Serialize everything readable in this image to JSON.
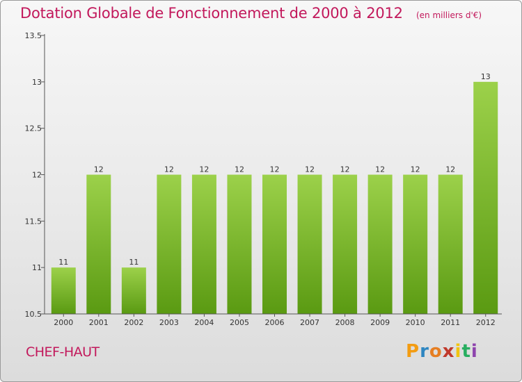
{
  "header": {
    "title": "Dotation Globale de Fonctionnement de 2000 à 2012",
    "subtitle": "(en milliers d'€)"
  },
  "footer": {
    "commune": "CHEF-HAUT",
    "logo_letters": [
      "P",
      "r",
      "o",
      "x",
      "i",
      "t",
      "i"
    ],
    "logo_colors": [
      "#f39c12",
      "#2e86c1",
      "#e67e22",
      "#c0392b",
      "#f1c40f",
      "#27ae60",
      "#8e44ad"
    ]
  },
  "chart_data": {
    "type": "bar",
    "categories": [
      "2000",
      "2001",
      "2002",
      "2003",
      "2004",
      "2005",
      "2006",
      "2007",
      "2008",
      "2009",
      "2010",
      "2011",
      "2012"
    ],
    "values": [
      11,
      12,
      11,
      12,
      12,
      12,
      12,
      12,
      12,
      12,
      12,
      12,
      13
    ],
    "data_labels": [
      "11",
      "12",
      "11",
      "12",
      "12",
      "12",
      "12",
      "12",
      "12",
      "12",
      "12",
      "12",
      "13"
    ],
    "yticks": [
      "10.5",
      "11",
      "11.5",
      "12",
      "12.5",
      "13",
      "13.5"
    ],
    "ylim": [
      10.5,
      13.5
    ],
    "grid": false,
    "colors": {
      "bar_top": "#9cd14a",
      "bar_bottom": "#5a9a12",
      "axis": "#555555",
      "tick_text": "#333333",
      "title": "#c2185b"
    }
  }
}
